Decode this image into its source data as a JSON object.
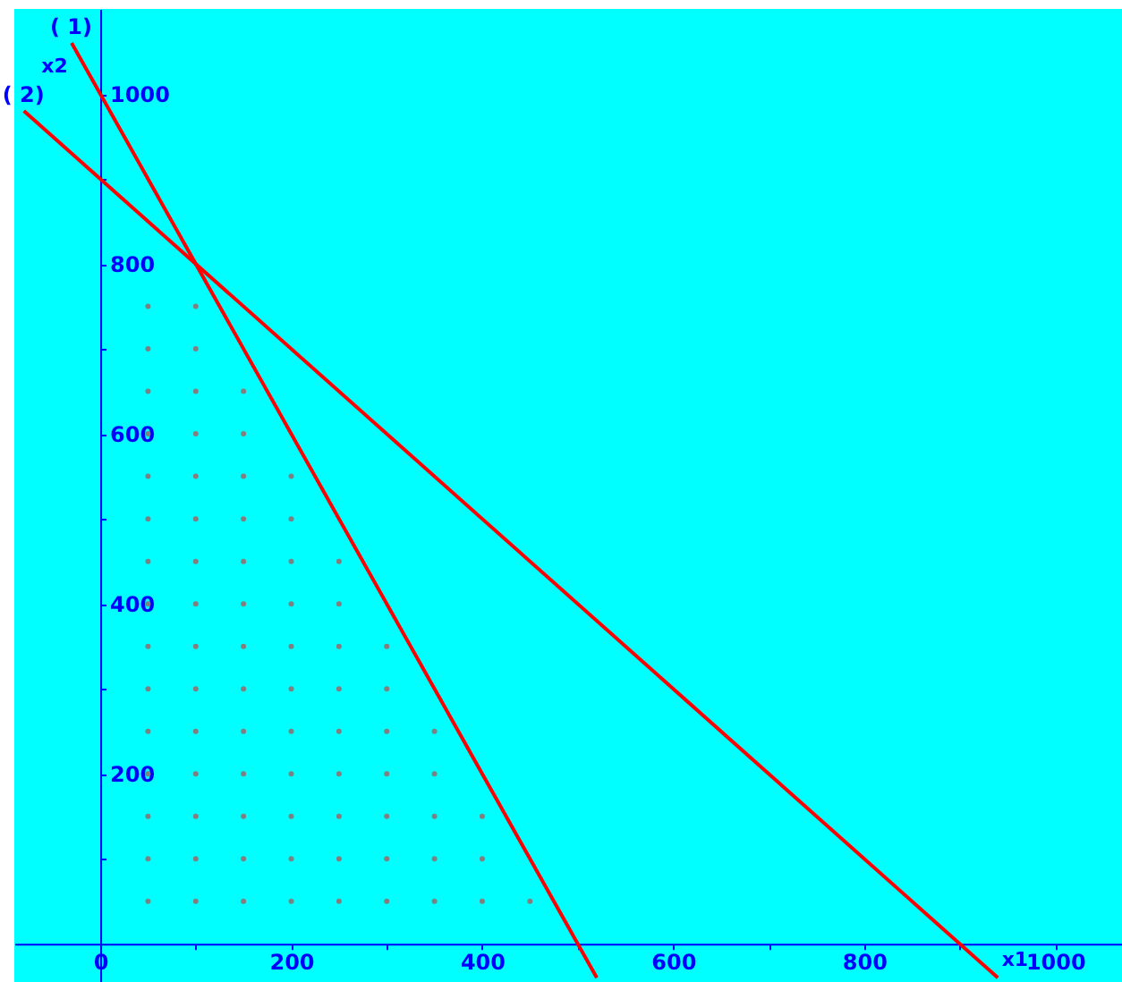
{
  "chart_data": {
    "type": "line",
    "xlabel": "x1",
    "ylabel": "x2",
    "xlim": [
      -90,
      1070
    ],
    "ylim": [
      -45,
      1100
    ],
    "xticks": [
      0,
      {
        "value": 100,
        "label": null
      },
      200,
      {
        "value": 300,
        "label": null
      },
      400,
      {
        "value": 500,
        "label": null
      },
      600,
      {
        "value": 700,
        "label": null
      },
      800,
      {
        "value": 900,
        "label": null
      },
      1000
    ],
    "yticks": [
      {
        "value": 100,
        "label": null
      },
      200,
      {
        "value": 300,
        "label": null
      },
      400,
      {
        "value": 500,
        "label": null
      },
      600,
      {
        "value": 700,
        "label": null
      },
      800,
      {
        "value": 900,
        "label": null
      },
      1000
    ],
    "grid": false,
    "line_style": "solid",
    "series": [
      {
        "name": "( 1)",
        "color": "#ff0000",
        "x": [
          -30,
          520
        ],
        "values": [
          1060,
          -40
        ]
      },
      {
        "name": "( 2)",
        "color": "#ff0000",
        "x": [
          -80,
          940
        ],
        "values": [
          980,
          -40
        ]
      },
      {
        "type": "scatter",
        "color": "#808080",
        "marker": "circle",
        "x": [
          50,
          50,
          50,
          50,
          50,
          50,
          50,
          50,
          50,
          50,
          50,
          50,
          50,
          50,
          50,
          100,
          100,
          100,
          100,
          100,
          100,
          100,
          100,
          100,
          100,
          100,
          100,
          100,
          100,
          100,
          150,
          150,
          150,
          150,
          150,
          150,
          150,
          150,
          150,
          150,
          150,
          150,
          150,
          200,
          200,
          200,
          200,
          200,
          200,
          200,
          200,
          200,
          200,
          200,
          250,
          250,
          250,
          250,
          250,
          250,
          250,
          250,
          250,
          300,
          300,
          300,
          300,
          300,
          300,
          300,
          350,
          350,
          350,
          350,
          350,
          400,
          400,
          400,
          450
        ],
        "values": [
          50,
          100,
          150,
          200,
          250,
          300,
          350,
          400,
          450,
          500,
          550,
          600,
          650,
          700,
          750,
          50,
          100,
          150,
          200,
          250,
          300,
          350,
          400,
          450,
          500,
          550,
          600,
          650,
          700,
          750,
          50,
          100,
          150,
          200,
          250,
          300,
          350,
          400,
          450,
          500,
          550,
          600,
          650,
          50,
          100,
          150,
          200,
          250,
          300,
          350,
          400,
          450,
          500,
          550,
          50,
          100,
          150,
          200,
          250,
          300,
          350,
          400,
          450,
          50,
          100,
          150,
          200,
          250,
          300,
          350,
          50,
          100,
          150,
          200,
          250,
          50,
          100,
          150,
          50
        ]
      }
    ]
  }
}
